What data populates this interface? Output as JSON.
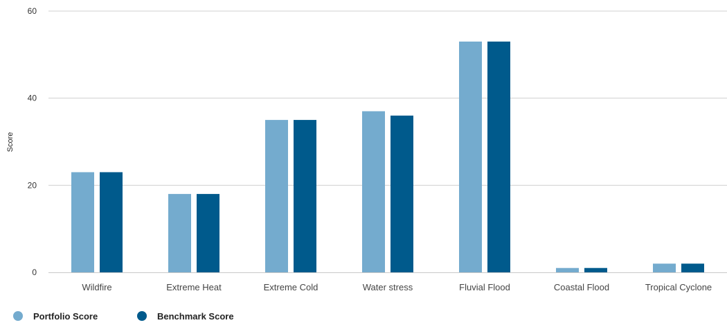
{
  "chart_data": {
    "type": "bar",
    "title": "",
    "xlabel": "",
    "ylabel": "Score",
    "ylim": [
      0,
      60
    ],
    "yticks": [
      0,
      20,
      40,
      60
    ],
    "grid": true,
    "legend_position": "bottom-left",
    "categories": [
      "Wildfire",
      "Extreme Heat",
      "Extreme Cold",
      "Water stress",
      "Fluvial Flood",
      "Coastal Flood",
      "Tropical Cyclone"
    ],
    "series": [
      {
        "name": "Portfolio Score",
        "color": "#74abce",
        "values": [
          23,
          18,
          35,
          37,
          53,
          1,
          2
        ]
      },
      {
        "name": "Benchmark Score",
        "color": "#005a8c",
        "values": [
          23,
          18,
          35,
          36,
          53,
          1,
          2
        ]
      }
    ]
  }
}
